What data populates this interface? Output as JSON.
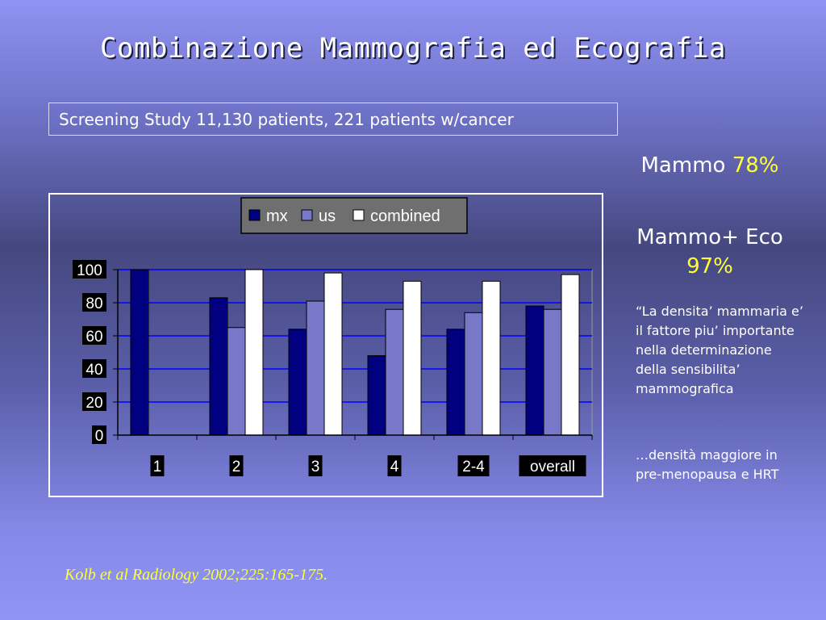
{
  "slide": {
    "title": "Combinazione Mammografia ed Ecografia",
    "subtitle": "Screening Study 11,130 patients, 221 patients w/cancer",
    "mammo_label": "Mammo",
    "mammo_value": "78%",
    "mammo_eco_label": "Mammo+ Eco",
    "mammo_eco_value": "97%",
    "quote": "“La densita’ mammaria e’ il fattore piu’ importante nella determinazione della sensibilita’ mammografica",
    "quote2": "…densità maggiore in pre-menopausa e HRT",
    "citation": "Kolb et al Radiology 2002;225:165-175."
  },
  "colors": {
    "mx": "#000080",
    "us": "#7878c8",
    "combined": "#ffffff",
    "gridline": "#0000ff",
    "highlight": "#ffff33"
  },
  "chart_data": {
    "type": "bar",
    "categories": [
      "1",
      "2",
      "3",
      "4",
      "2-4",
      "overall"
    ],
    "series": [
      {
        "name": "mx",
        "values": [
          100,
          83,
          64,
          48,
          64,
          78
        ]
      },
      {
        "name": "us",
        "values": [
          null,
          65,
          81,
          76,
          74,
          76
        ]
      },
      {
        "name": "combined",
        "values": [
          null,
          100,
          98,
          93,
          93,
          97
        ]
      }
    ],
    "ylim": [
      0,
      100
    ],
    "yticks": [
      "0",
      "20",
      "40",
      "60",
      "80",
      "100"
    ],
    "grid": true,
    "legend_position": "top"
  }
}
